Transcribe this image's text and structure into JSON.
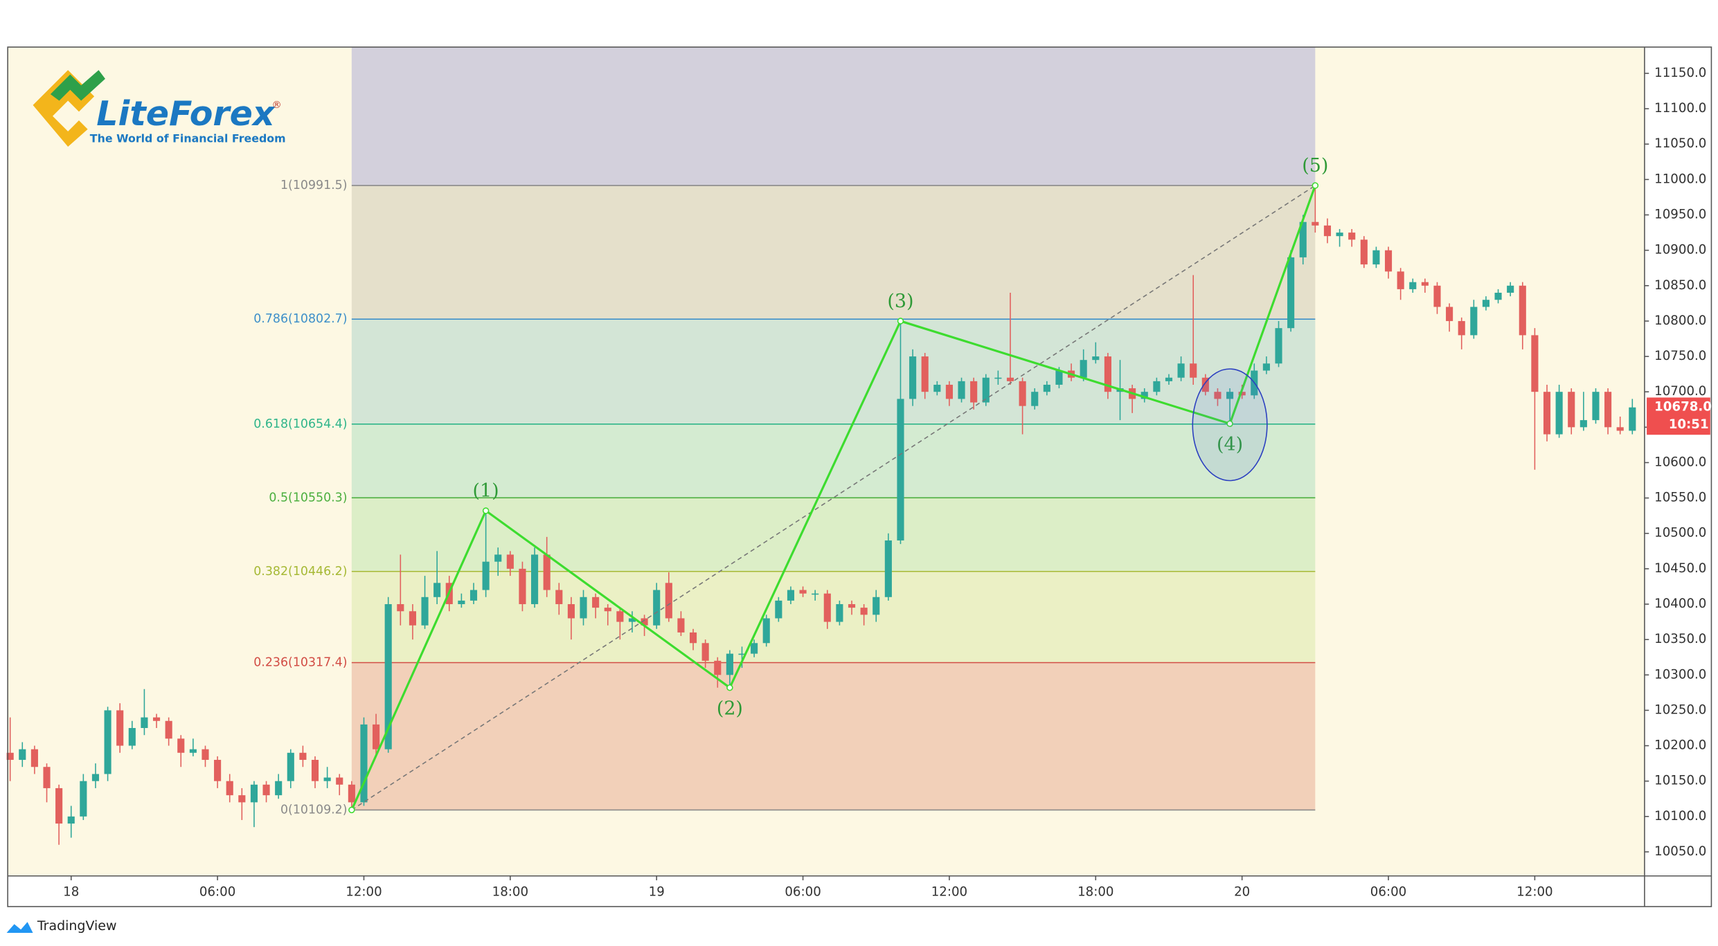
{
  "chart_data": {
    "type": "candlestick",
    "logo": {
      "brand": "LiteForex",
      "registered": "®",
      "tagline": "The World of Financial Freedom"
    },
    "footer": "TradingView",
    "xlim": [
      -2.6,
      64.5
    ],
    "ylim": [
      10016.0,
      11187.1
    ],
    "xticks": [
      {
        "value": 0,
        "label": "18"
      },
      {
        "value": 6,
        "label": "06:00"
      },
      {
        "value": 12,
        "label": "12:00"
      },
      {
        "value": 18,
        "label": "18:00"
      },
      {
        "value": 24,
        "label": "19"
      },
      {
        "value": 30,
        "label": "06:00"
      },
      {
        "value": 36,
        "label": "12:00"
      },
      {
        "value": 42,
        "label": "18:00"
      },
      {
        "value": 48,
        "label": "20"
      },
      {
        "value": 54,
        "label": "06:00"
      },
      {
        "value": 60,
        "label": "12:00"
      }
    ],
    "yticks": [
      {
        "value": 10050,
        "label": "10050.0"
      },
      {
        "value": 10100,
        "label": "10100.0"
      },
      {
        "value": 10150,
        "label": "10150.0"
      },
      {
        "value": 10200,
        "label": "10200.0"
      },
      {
        "value": 10250,
        "label": "10250.0"
      },
      {
        "value": 10300,
        "label": "10300.0"
      },
      {
        "value": 10350,
        "label": "10350.0"
      },
      {
        "value": 10400,
        "label": "10400.0"
      },
      {
        "value": 10450,
        "label": "10450.0"
      },
      {
        "value": 10500,
        "label": "10500.0"
      },
      {
        "value": 10550,
        "label": "10550.0"
      },
      {
        "value": 10600,
        "label": "10600.0"
      },
      {
        "value": 10650,
        "label": "10650.0"
      },
      {
        "value": 10700,
        "label": "10700.0"
      },
      {
        "value": 10750,
        "label": "10750.0"
      },
      {
        "value": 10800,
        "label": "10800.0"
      },
      {
        "value": 10850,
        "label": "10850.0"
      },
      {
        "value": 10900,
        "label": "10900.0"
      },
      {
        "value": 10950,
        "label": "10950.0"
      },
      {
        "value": 11000,
        "label": "11000.0"
      },
      {
        "value": 11050,
        "label": "11050.0"
      },
      {
        "value": 11100,
        "label": "11100.0"
      },
      {
        "value": 11150,
        "label": "11150.0"
      }
    ],
    "up_color": "#2fa79a",
    "down_color": "#e2605d",
    "background": "#fdf8e3",
    "x": [
      -2.5,
      -2,
      -1.5,
      -1,
      -0.5,
      0,
      0.5,
      1,
      1.5,
      2,
      2.5,
      3,
      3.5,
      4,
      4.5,
      5,
      5.5,
      6,
      6.5,
      7,
      7.5,
      8,
      8.5,
      9,
      9.5,
      10,
      10.5,
      11,
      11.5,
      12,
      12.5,
      13,
      13.5,
      14,
      14.5,
      15,
      15.5,
      16,
      16.5,
      17,
      17.5,
      18,
      18.5,
      19,
      19.5,
      20,
      20.5,
      21,
      21.5,
      22,
      22.5,
      23,
      23.5,
      24,
      24.5,
      25,
      25.5,
      26,
      26.5,
      27,
      27.5,
      28,
      28.5,
      29,
      29.5,
      30,
      30.5,
      31,
      31.5,
      32,
      32.5,
      33,
      33.5,
      34,
      34.5,
      35,
      35.5,
      36,
      36.5,
      37,
      37.5,
      38,
      38.5,
      39,
      39.5,
      40,
      40.5,
      41,
      41.5,
      42,
      42.5,
      43,
      43.5,
      44,
      44.5,
      45,
      45.5,
      46,
      46.5,
      47,
      47.5,
      48,
      48.5,
      49,
      49.5,
      50,
      50.5,
      51,
      51.5,
      52,
      52.5,
      53,
      53.5,
      54,
      54.5,
      55,
      55.5,
      56,
      56.5,
      57,
      57.5,
      58,
      58.5,
      59,
      59.5,
      60,
      60.5,
      61,
      61.5,
      62,
      62.5,
      63,
      63.5,
      64
    ],
    "candles": [
      [
        10190,
        10240,
        10150,
        10180
      ],
      [
        10180,
        10205,
        10170,
        10195
      ],
      [
        10195,
        10200,
        10160,
        10170
      ],
      [
        10170,
        10175,
        10120,
        10140
      ],
      [
        10140,
        10145,
        10060,
        10090
      ],
      [
        10090,
        10115,
        10070,
        10100
      ],
      [
        10100,
        10160,
        10095,
        10150
      ],
      [
        10150,
        10175,
        10140,
        10160
      ],
      [
        10160,
        10255,
        10150,
        10250
      ],
      [
        10250,
        10260,
        10190,
        10200
      ],
      [
        10200,
        10235,
        10195,
        10225
      ],
      [
        10225,
        10280,
        10215,
        10240
      ],
      [
        10240,
        10245,
        10225,
        10235
      ],
      [
        10235,
        10240,
        10200,
        10210
      ],
      [
        10210,
        10215,
        10170,
        10190
      ],
      [
        10190,
        10210,
        10185,
        10195
      ],
      [
        10195,
        10200,
        10170,
        10180
      ],
      [
        10180,
        10185,
        10140,
        10150
      ],
      [
        10150,
        10160,
        10120,
        10130
      ],
      [
        10130,
        10140,
        10095,
        10120
      ],
      [
        10120,
        10150,
        10085,
        10145
      ],
      [
        10145,
        10150,
        10120,
        10130
      ],
      [
        10130,
        10160,
        10125,
        10150
      ],
      [
        10150,
        10195,
        10140,
        10190
      ],
      [
        10190,
        10200,
        10170,
        10180
      ],
      [
        10180,
        10185,
        10140,
        10150
      ],
      [
        10150,
        10170,
        10140,
        10155
      ],
      [
        10155,
        10160,
        10130,
        10145
      ],
      [
        10145,
        10150,
        10109,
        10120
      ],
      [
        10120,
        10240,
        10115,
        10230
      ],
      [
        10230,
        10245,
        10185,
        10195
      ],
      [
        10195,
        10410,
        10190,
        10400
      ],
      [
        10400,
        10470,
        10370,
        10390
      ],
      [
        10390,
        10400,
        10350,
        10370
      ],
      [
        10370,
        10440,
        10365,
        10410
      ],
      [
        10410,
        10475,
        10400,
        10430
      ],
      [
        10430,
        10440,
        10390,
        10400
      ],
      [
        10400,
        10415,
        10395,
        10405
      ],
      [
        10405,
        10430,
        10400,
        10420
      ],
      [
        10420,
        10532,
        10410,
        10460
      ],
      [
        10460,
        10480,
        10440,
        10470
      ],
      [
        10470,
        10475,
        10440,
        10450
      ],
      [
        10450,
        10460,
        10390,
        10400
      ],
      [
        10400,
        10480,
        10395,
        10470
      ],
      [
        10470,
        10495,
        10410,
        10420
      ],
      [
        10420,
        10430,
        10385,
        10400
      ],
      [
        10400,
        10410,
        10350,
        10380
      ],
      [
        10380,
        10420,
        10370,
        10410
      ],
      [
        10410,
        10415,
        10380,
        10395
      ],
      [
        10395,
        10400,
        10370,
        10390
      ],
      [
        10390,
        10395,
        10350,
        10375
      ],
      [
        10375,
        10390,
        10360,
        10380
      ],
      [
        10380,
        10385,
        10355,
        10370
      ],
      [
        10370,
        10430,
        10365,
        10420
      ],
      [
        10430,
        10445,
        10375,
        10380
      ],
      [
        10380,
        10390,
        10355,
        10360
      ],
      [
        10360,
        10365,
        10335,
        10345
      ],
      [
        10345,
        10350,
        10310,
        10320
      ],
      [
        10320,
        10325,
        10282,
        10300
      ],
      [
        10300,
        10335,
        10283,
        10330
      ],
      [
        10330,
        10340,
        10310,
        10330
      ],
      [
        10330,
        10350,
        10325,
        10345
      ],
      [
        10345,
        10385,
        10340,
        10380
      ],
      [
        10380,
        10410,
        10375,
        10405
      ],
      [
        10405,
        10425,
        10400,
        10420
      ],
      [
        10420,
        10425,
        10410,
        10415
      ],
      [
        10415,
        10420,
        10405,
        10415
      ],
      [
        10415,
        10420,
        10365,
        10375
      ],
      [
        10375,
        10405,
        10370,
        10400
      ],
      [
        10400,
        10405,
        10385,
        10395
      ],
      [
        10395,
        10400,
        10370,
        10385
      ],
      [
        10385,
        10420,
        10375,
        10410
      ],
      [
        10410,
        10500,
        10405,
        10490
      ],
      [
        10490,
        10800,
        10485,
        10690
      ],
      [
        10690,
        10760,
        10680,
        10750
      ],
      [
        10750,
        10755,
        10690,
        10700
      ],
      [
        10700,
        10715,
        10695,
        10710
      ],
      [
        10710,
        10715,
        10680,
        10690
      ],
      [
        10690,
        10720,
        10685,
        10715
      ],
      [
        10715,
        10720,
        10675,
        10685
      ],
      [
        10685,
        10725,
        10680,
        10720
      ],
      [
        10720,
        10730,
        10710,
        10720
      ],
      [
        10720,
        10840,
        10710,
        10715
      ],
      [
        10715,
        10720,
        10640,
        10680
      ],
      [
        10680,
        10705,
        10675,
        10700
      ],
      [
        10700,
        10715,
        10695,
        10710
      ],
      [
        10710,
        10735,
        10705,
        10730
      ],
      [
        10730,
        10740,
        10715,
        10720
      ],
      [
        10720,
        10760,
        10715,
        10745
      ],
      [
        10745,
        10770,
        10740,
        10750
      ],
      [
        10750,
        10755,
        10690,
        10700
      ],
      [
        10700,
        10745,
        10660,
        10705
      ],
      [
        10705,
        10710,
        10670,
        10690
      ],
      [
        10690,
        10705,
        10685,
        10700
      ],
      [
        10700,
        10720,
        10695,
        10715
      ],
      [
        10715,
        10725,
        10710,
        10720
      ],
      [
        10720,
        10750,
        10715,
        10740
      ],
      [
        10740,
        10865,
        10710,
        10720
      ],
      [
        10720,
        10725,
        10695,
        10700
      ],
      [
        10700,
        10705,
        10680,
        10690
      ],
      [
        10690,
        10705,
        10655,
        10700
      ],
      [
        10700,
        10710,
        10690,
        10695
      ],
      [
        10695,
        10740,
        10690,
        10730
      ],
      [
        10730,
        10750,
        10725,
        10740
      ],
      [
        10740,
        10800,
        10735,
        10790
      ],
      [
        10790,
        10900,
        10785,
        10890
      ],
      [
        10890,
        10950,
        10880,
        10940
      ],
      [
        10940,
        10991.5,
        10925,
        10935
      ],
      [
        10935,
        10945,
        10910,
        10920
      ],
      [
        10920,
        10930,
        10905,
        10925
      ],
      [
        10925,
        10930,
        10905,
        10915
      ],
      [
        10915,
        10920,
        10875,
        10880
      ],
      [
        10880,
        10905,
        10875,
        10900
      ],
      [
        10900,
        10905,
        10860,
        10870
      ],
      [
        10870,
        10875,
        10830,
        10845
      ],
      [
        10845,
        10860,
        10840,
        10855
      ],
      [
        10855,
        10860,
        10840,
        10850
      ],
      [
        10850,
        10855,
        10810,
        10820
      ],
      [
        10820,
        10825,
        10785,
        10800
      ],
      [
        10800,
        10805,
        10760,
        10780
      ],
      [
        10780,
        10830,
        10775,
        10820
      ],
      [
        10820,
        10835,
        10815,
        10830
      ],
      [
        10830,
        10845,
        10825,
        10840
      ],
      [
        10840,
        10855,
        10835,
        10850
      ],
      [
        10850,
        10855,
        10760,
        10780
      ],
      [
        10780,
        10790,
        10590,
        10700
      ],
      [
        10700,
        10710,
        10630,
        10640
      ],
      [
        10640,
        10710,
        10635,
        10700
      ],
      [
        10700,
        10705,
        10640,
        10650
      ],
      [
        10650,
        10700,
        10645,
        10660
      ],
      [
        10660,
        10705,
        10655,
        10700
      ],
      [
        10700,
        10705,
        10640,
        10650
      ],
      [
        10650,
        10665,
        10640,
        10645
      ],
      [
        10645,
        10690,
        10640,
        10678
      ]
    ],
    "fib_x": [
      11.5,
      51
    ],
    "fib_top_color": "#d3d0dc",
    "fib_levels": [
      {
        "value": 10991.5,
        "label": "1(10991.5)",
        "color": "#8a8a8a",
        "fill": "#e5e0cb"
      },
      {
        "value": 10802.7,
        "label": "0.786(10802.7)",
        "color": "#3d8fc9",
        "fill": "#d3e5d6"
      },
      {
        "value": 10654.4,
        "label": "0.618(10654.4)",
        "color": "#2fb58a",
        "fill": "#d4ebd1"
      },
      {
        "value": 10550.3,
        "label": "0.5(10550.3)",
        "color": "#4caf3f",
        "fill": "#dceec7"
      },
      {
        "value": 10446.2,
        "label": "0.382(10446.2)",
        "color": "#a6b935",
        "fill": "#ebf0c5"
      },
      {
        "value": 10317.4,
        "label": "0.236(10317.4)",
        "color": "#d24d45",
        "fill": "#f2d0b9"
      },
      {
        "value": 10109.2,
        "label": "0(10109.2)",
        "color": "#8a8a8a"
      }
    ],
    "wave": {
      "x": [
        11.5,
        17,
        27,
        34,
        47.5,
        51
      ],
      "y": [
        10109.2,
        10532,
        10282,
        10800,
        10655,
        10991.5
      ],
      "labels": [
        null,
        "(1)",
        "(2)",
        "(3)",
        "(4)",
        "(5)"
      ],
      "color": "#3ddc2f",
      "label_color": "#2f9a37"
    },
    "last_price": {
      "value": 10678,
      "label": "10678.0",
      "color": "#ef4f4f"
    },
    "countdown": "10:51"
  }
}
